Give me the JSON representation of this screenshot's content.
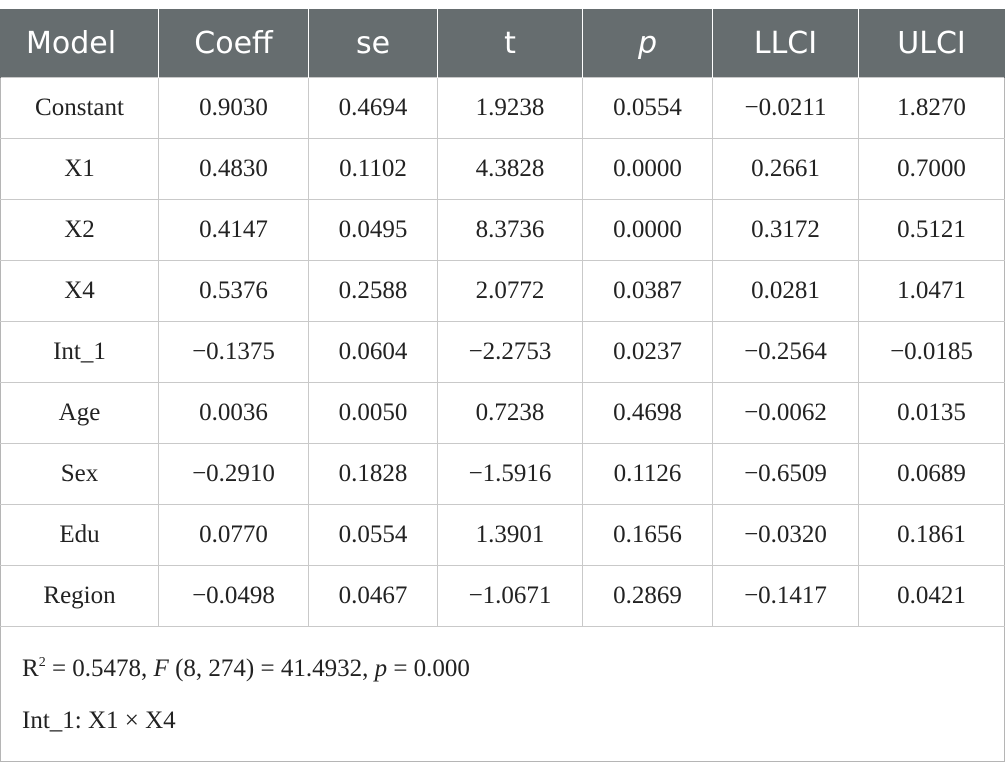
{
  "table": {
    "headers": [
      "Model",
      "Coeff",
      "se",
      "t",
      "p",
      "LLCI",
      "ULCI"
    ],
    "rows": [
      [
        "Constant",
        "0.9030",
        "0.4694",
        "1.9238",
        "0.0554",
        "−0.0211",
        "1.8270"
      ],
      [
        "X1",
        "0.4830",
        "0.1102",
        "4.3828",
        "0.0000",
        "0.2661",
        "0.7000"
      ],
      [
        "X2",
        "0.4147",
        "0.0495",
        "8.3736",
        "0.0000",
        "0.3172",
        "0.5121"
      ],
      [
        "X4",
        "0.5376",
        "0.2588",
        "2.0772",
        "0.0387",
        "0.0281",
        "1.0471"
      ],
      [
        "Int_1",
        "−0.1375",
        "0.0604",
        "−2.2753",
        "0.0237",
        "−0.2564",
        "−0.0185"
      ],
      [
        "Age",
        "0.0036",
        "0.0050",
        "0.7238",
        "0.4698",
        "−0.0062",
        "0.0135"
      ],
      [
        "Sex",
        "−0.2910",
        "0.1828",
        "−1.5916",
        "0.1126",
        "−0.6509",
        "0.0689"
      ],
      [
        "Edu",
        "0.0770",
        "0.0554",
        "1.3901",
        "0.1656",
        "−0.0320",
        "0.1861"
      ],
      [
        "Region",
        "−0.0498",
        "0.0467",
        "−1.0671",
        "0.2869",
        "−0.1417",
        "0.0421"
      ]
    ]
  },
  "footnote": {
    "r_symbol": "R",
    "r_sup": "2",
    "r_value": " = 0.5478, ",
    "f_symbol": "F",
    "f_value": " (8, 274) = 41.4932, ",
    "p_symbol": "p",
    "p_value": " = 0.000",
    "note": "Int_1: X1 × X4"
  }
}
